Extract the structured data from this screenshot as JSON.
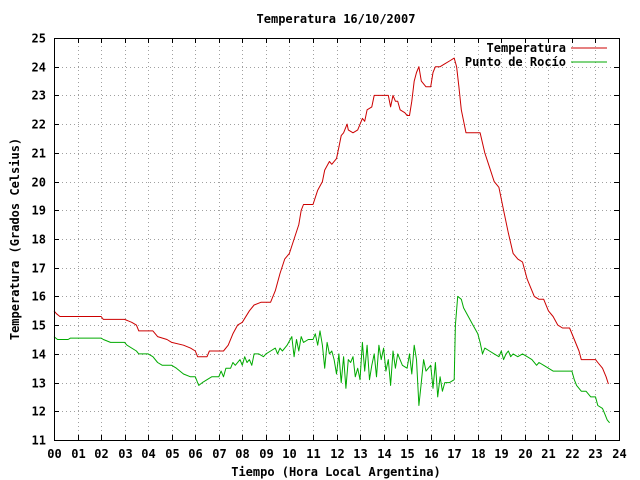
{
  "chart_data": {
    "type": "line",
    "title": "Temperatura 16/10/2007",
    "xlabel": "Tiempo (Hora Local Argentina)",
    "ylabel": "Temperatura (Grados Celsius)",
    "xlim": [
      0,
      24
    ],
    "ylim": [
      11,
      25
    ],
    "x_ticks": [
      {
        "value": 0,
        "label": "00"
      },
      {
        "value": 1,
        "label": "01"
      },
      {
        "value": 2,
        "label": "02"
      },
      {
        "value": 3,
        "label": "03"
      },
      {
        "value": 4,
        "label": "04"
      },
      {
        "value": 5,
        "label": "05"
      },
      {
        "value": 6,
        "label": "06"
      },
      {
        "value": 7,
        "label": "07"
      },
      {
        "value": 8,
        "label": "08"
      },
      {
        "value": 9,
        "label": "09"
      },
      {
        "value": 10,
        "label": "10"
      },
      {
        "value": 11,
        "label": "11"
      },
      {
        "value": 12,
        "label": "12"
      },
      {
        "value": 13,
        "label": "13"
      },
      {
        "value": 14,
        "label": "14"
      },
      {
        "value": 15,
        "label": "15"
      },
      {
        "value": 16,
        "label": "16"
      },
      {
        "value": 17,
        "label": "17"
      },
      {
        "value": 18,
        "label": "18"
      },
      {
        "value": 19,
        "label": "19"
      },
      {
        "value": 20,
        "label": "20"
      },
      {
        "value": 21,
        "label": "21"
      },
      {
        "value": 22,
        "label": "22"
      },
      {
        "value": 23,
        "label": "23"
      },
      {
        "value": 24,
        "label": "24"
      }
    ],
    "y_ticks": [
      {
        "value": 11,
        "label": "11"
      },
      {
        "value": 12,
        "label": "12"
      },
      {
        "value": 13,
        "label": "13"
      },
      {
        "value": 14,
        "label": "14"
      },
      {
        "value": 15,
        "label": "15"
      },
      {
        "value": 16,
        "label": "16"
      },
      {
        "value": 17,
        "label": "17"
      },
      {
        "value": 18,
        "label": "18"
      },
      {
        "value": 19,
        "label": "19"
      },
      {
        "value": 20,
        "label": "20"
      },
      {
        "value": 21,
        "label": "21"
      },
      {
        "value": 22,
        "label": "22"
      },
      {
        "value": 23,
        "label": "23"
      },
      {
        "value": 24,
        "label": "24"
      },
      {
        "value": 25,
        "label": "25"
      }
    ],
    "grid": true,
    "legend_position": "top-right",
    "series": [
      {
        "name": "Temperatura",
        "color": "#cc0000",
        "points": [
          [
            0.0,
            15.5
          ],
          [
            0.1,
            15.4
          ],
          [
            0.25,
            15.3
          ],
          [
            1.0,
            15.3
          ],
          [
            2.0,
            15.3
          ],
          [
            2.1,
            15.2
          ],
          [
            3.0,
            15.2
          ],
          [
            3.3,
            15.1
          ],
          [
            3.5,
            15.0
          ],
          [
            3.6,
            14.8
          ],
          [
            4.2,
            14.8
          ],
          [
            4.4,
            14.6
          ],
          [
            4.8,
            14.5
          ],
          [
            5.0,
            14.4
          ],
          [
            5.5,
            14.3
          ],
          [
            5.8,
            14.2
          ],
          [
            6.0,
            14.1
          ],
          [
            6.1,
            13.9
          ],
          [
            6.5,
            13.9
          ],
          [
            6.6,
            14.1
          ],
          [
            7.2,
            14.1
          ],
          [
            7.4,
            14.3
          ],
          [
            7.6,
            14.7
          ],
          [
            7.8,
            15.0
          ],
          [
            8.0,
            15.1
          ],
          [
            8.3,
            15.5
          ],
          [
            8.5,
            15.7
          ],
          [
            8.8,
            15.8
          ],
          [
            9.2,
            15.8
          ],
          [
            9.4,
            16.2
          ],
          [
            9.6,
            16.8
          ],
          [
            9.8,
            17.3
          ],
          [
            10.0,
            17.5
          ],
          [
            10.2,
            18.0
          ],
          [
            10.4,
            18.5
          ],
          [
            10.5,
            19.0
          ],
          [
            10.6,
            19.2
          ],
          [
            11.0,
            19.2
          ],
          [
            11.2,
            19.7
          ],
          [
            11.4,
            20.0
          ],
          [
            11.5,
            20.4
          ],
          [
            11.7,
            20.7
          ],
          [
            11.8,
            20.6
          ],
          [
            12.0,
            20.8
          ],
          [
            12.1,
            21.2
          ],
          [
            12.2,
            21.6
          ],
          [
            12.3,
            21.7
          ],
          [
            12.45,
            22.0
          ],
          [
            12.5,
            21.8
          ],
          [
            12.7,
            21.7
          ],
          [
            12.9,
            21.8
          ],
          [
            13.1,
            22.2
          ],
          [
            13.2,
            22.1
          ],
          [
            13.3,
            22.5
          ],
          [
            13.5,
            22.6
          ],
          [
            13.6,
            23.0
          ],
          [
            14.0,
            23.0
          ],
          [
            14.2,
            23.0
          ],
          [
            14.3,
            22.6
          ],
          [
            14.4,
            23.0
          ],
          [
            14.5,
            22.8
          ],
          [
            14.6,
            22.8
          ],
          [
            14.7,
            22.5
          ],
          [
            14.9,
            22.4
          ],
          [
            15.0,
            22.3
          ],
          [
            15.1,
            22.3
          ],
          [
            15.2,
            22.8
          ],
          [
            15.3,
            23.5
          ],
          [
            15.4,
            23.8
          ],
          [
            15.5,
            24.0
          ],
          [
            15.6,
            23.5
          ],
          [
            15.8,
            23.3
          ],
          [
            16.0,
            23.3
          ],
          [
            16.1,
            23.8
          ],
          [
            16.2,
            24.0
          ],
          [
            16.4,
            24.0
          ],
          [
            16.6,
            24.1
          ],
          [
            16.8,
            24.2
          ],
          [
            17.0,
            24.3
          ],
          [
            17.1,
            24.0
          ],
          [
            17.2,
            23.3
          ],
          [
            17.3,
            22.5
          ],
          [
            17.5,
            21.7
          ],
          [
            17.7,
            21.7
          ],
          [
            18.1,
            21.7
          ],
          [
            18.3,
            21.0
          ],
          [
            18.5,
            20.5
          ],
          [
            18.7,
            20.0
          ],
          [
            18.9,
            19.8
          ],
          [
            19.1,
            19.0
          ],
          [
            19.3,
            18.2
          ],
          [
            19.5,
            17.5
          ],
          [
            19.7,
            17.3
          ],
          [
            19.9,
            17.2
          ],
          [
            20.1,
            16.6
          ],
          [
            20.4,
            16.0
          ],
          [
            20.6,
            15.9
          ],
          [
            20.8,
            15.9
          ],
          [
            21.0,
            15.5
          ],
          [
            21.2,
            15.3
          ],
          [
            21.4,
            15.0
          ],
          [
            21.6,
            14.9
          ],
          [
            21.9,
            14.9
          ],
          [
            22.1,
            14.5
          ],
          [
            22.3,
            14.1
          ],
          [
            22.4,
            13.8
          ],
          [
            22.6,
            13.8
          ],
          [
            23.0,
            13.8
          ],
          [
            23.1,
            13.7
          ],
          [
            23.3,
            13.5
          ],
          [
            23.45,
            13.2
          ],
          [
            23.55,
            12.95
          ]
        ]
      },
      {
        "name": "Punto de Rocío",
        "color": "#00aa00",
        "points": [
          [
            0.0,
            14.6
          ],
          [
            0.15,
            14.5
          ],
          [
            0.6,
            14.5
          ],
          [
            0.7,
            14.55
          ],
          [
            1.0,
            14.55
          ],
          [
            2.0,
            14.55
          ],
          [
            2.1,
            14.5
          ],
          [
            2.4,
            14.4
          ],
          [
            3.0,
            14.4
          ],
          [
            3.1,
            14.3
          ],
          [
            3.5,
            14.1
          ],
          [
            3.6,
            14.0
          ],
          [
            4.0,
            14.0
          ],
          [
            4.2,
            13.9
          ],
          [
            4.4,
            13.7
          ],
          [
            4.6,
            13.6
          ],
          [
            5.0,
            13.6
          ],
          [
            5.2,
            13.5
          ],
          [
            5.5,
            13.3
          ],
          [
            5.8,
            13.2
          ],
          [
            6.0,
            13.2
          ],
          [
            6.1,
            13.0
          ],
          [
            6.15,
            12.9
          ],
          [
            6.3,
            13.0
          ],
          [
            6.5,
            13.1
          ],
          [
            6.7,
            13.2
          ],
          [
            7.0,
            13.2
          ],
          [
            7.1,
            13.4
          ],
          [
            7.2,
            13.2
          ],
          [
            7.3,
            13.5
          ],
          [
            7.5,
            13.5
          ],
          [
            7.6,
            13.7
          ],
          [
            7.7,
            13.6
          ],
          [
            7.9,
            13.8
          ],
          [
            8.0,
            13.6
          ],
          [
            8.1,
            13.9
          ],
          [
            8.2,
            13.7
          ],
          [
            8.3,
            13.8
          ],
          [
            8.4,
            13.6
          ],
          [
            8.5,
            14.0
          ],
          [
            8.7,
            14.0
          ],
          [
            8.9,
            13.9
          ],
          [
            9.0,
            14.0
          ],
          [
            9.2,
            14.1
          ],
          [
            9.4,
            14.2
          ],
          [
            9.5,
            14.0
          ],
          [
            9.6,
            14.2
          ],
          [
            9.7,
            14.1
          ],
          [
            9.9,
            14.3
          ],
          [
            10.1,
            14.6
          ],
          [
            10.2,
            13.9
          ],
          [
            10.3,
            14.5
          ],
          [
            10.4,
            14.1
          ],
          [
            10.5,
            14.6
          ],
          [
            10.6,
            14.4
          ],
          [
            10.8,
            14.5
          ],
          [
            11.0,
            14.5
          ],
          [
            11.1,
            14.7
          ],
          [
            11.2,
            14.3
          ],
          [
            11.3,
            14.8
          ],
          [
            11.4,
            14.3
          ],
          [
            11.5,
            13.5
          ],
          [
            11.6,
            14.4
          ],
          [
            11.7,
            14.0
          ],
          [
            11.8,
            14.1
          ],
          [
            11.9,
            13.8
          ],
          [
            12.0,
            13.3
          ],
          [
            12.1,
            14.0
          ],
          [
            12.2,
            13.0
          ],
          [
            12.3,
            13.9
          ],
          [
            12.4,
            12.8
          ],
          [
            12.5,
            13.8
          ],
          [
            12.6,
            13.7
          ],
          [
            12.7,
            13.9
          ],
          [
            12.8,
            13.2
          ],
          [
            12.9,
            13.5
          ],
          [
            13.0,
            13.1
          ],
          [
            13.1,
            14.4
          ],
          [
            13.2,
            13.4
          ],
          [
            13.3,
            14.3
          ],
          [
            13.4,
            13.1
          ],
          [
            13.5,
            13.6
          ],
          [
            13.6,
            14.0
          ],
          [
            13.7,
            13.2
          ],
          [
            13.8,
            14.3
          ],
          [
            13.9,
            13.8
          ],
          [
            14.0,
            14.2
          ],
          [
            14.1,
            13.4
          ],
          [
            14.2,
            13.8
          ],
          [
            14.3,
            12.9
          ],
          [
            14.4,
            14.1
          ],
          [
            14.5,
            13.5
          ],
          [
            14.6,
            14.0
          ],
          [
            14.8,
            13.6
          ],
          [
            15.0,
            13.5
          ],
          [
            15.1,
            14.0
          ],
          [
            15.2,
            13.3
          ],
          [
            15.3,
            14.3
          ],
          [
            15.4,
            13.8
          ],
          [
            15.5,
            12.2
          ],
          [
            15.6,
            13.0
          ],
          [
            15.7,
            13.8
          ],
          [
            15.8,
            13.4
          ],
          [
            16.0,
            13.6
          ],
          [
            16.1,
            12.8
          ],
          [
            16.2,
            13.7
          ],
          [
            16.3,
            12.5
          ],
          [
            16.4,
            13.2
          ],
          [
            16.5,
            12.7
          ],
          [
            16.6,
            13.0
          ],
          [
            16.8,
            13.0
          ],
          [
            17.0,
            13.1
          ],
          [
            17.05,
            15.0
          ],
          [
            17.15,
            16.0
          ],
          [
            17.3,
            15.9
          ],
          [
            17.4,
            15.6
          ],
          [
            17.6,
            15.3
          ],
          [
            17.8,
            15.0
          ],
          [
            18.0,
            14.7
          ],
          [
            18.1,
            14.4
          ],
          [
            18.2,
            14.0
          ],
          [
            18.3,
            14.2
          ],
          [
            18.5,
            14.1
          ],
          [
            18.7,
            14.0
          ],
          [
            18.9,
            13.9
          ],
          [
            19.0,
            14.1
          ],
          [
            19.1,
            13.8
          ],
          [
            19.2,
            14.0
          ],
          [
            19.3,
            14.1
          ],
          [
            19.4,
            13.9
          ],
          [
            19.5,
            14.0
          ],
          [
            19.7,
            13.9
          ],
          [
            19.9,
            14.0
          ],
          [
            20.1,
            13.9
          ],
          [
            20.3,
            13.8
          ],
          [
            20.5,
            13.6
          ],
          [
            20.6,
            13.7
          ],
          [
            20.8,
            13.6
          ],
          [
            21.0,
            13.5
          ],
          [
            21.2,
            13.4
          ],
          [
            21.5,
            13.4
          ],
          [
            22.0,
            13.4
          ],
          [
            22.1,
            13.1
          ],
          [
            22.2,
            12.9
          ],
          [
            22.4,
            12.7
          ],
          [
            22.6,
            12.7
          ],
          [
            22.8,
            12.5
          ],
          [
            23.0,
            12.5
          ],
          [
            23.1,
            12.2
          ],
          [
            23.3,
            12.1
          ],
          [
            23.4,
            11.9
          ],
          [
            23.5,
            11.7
          ],
          [
            23.6,
            11.6
          ]
        ]
      }
    ]
  }
}
